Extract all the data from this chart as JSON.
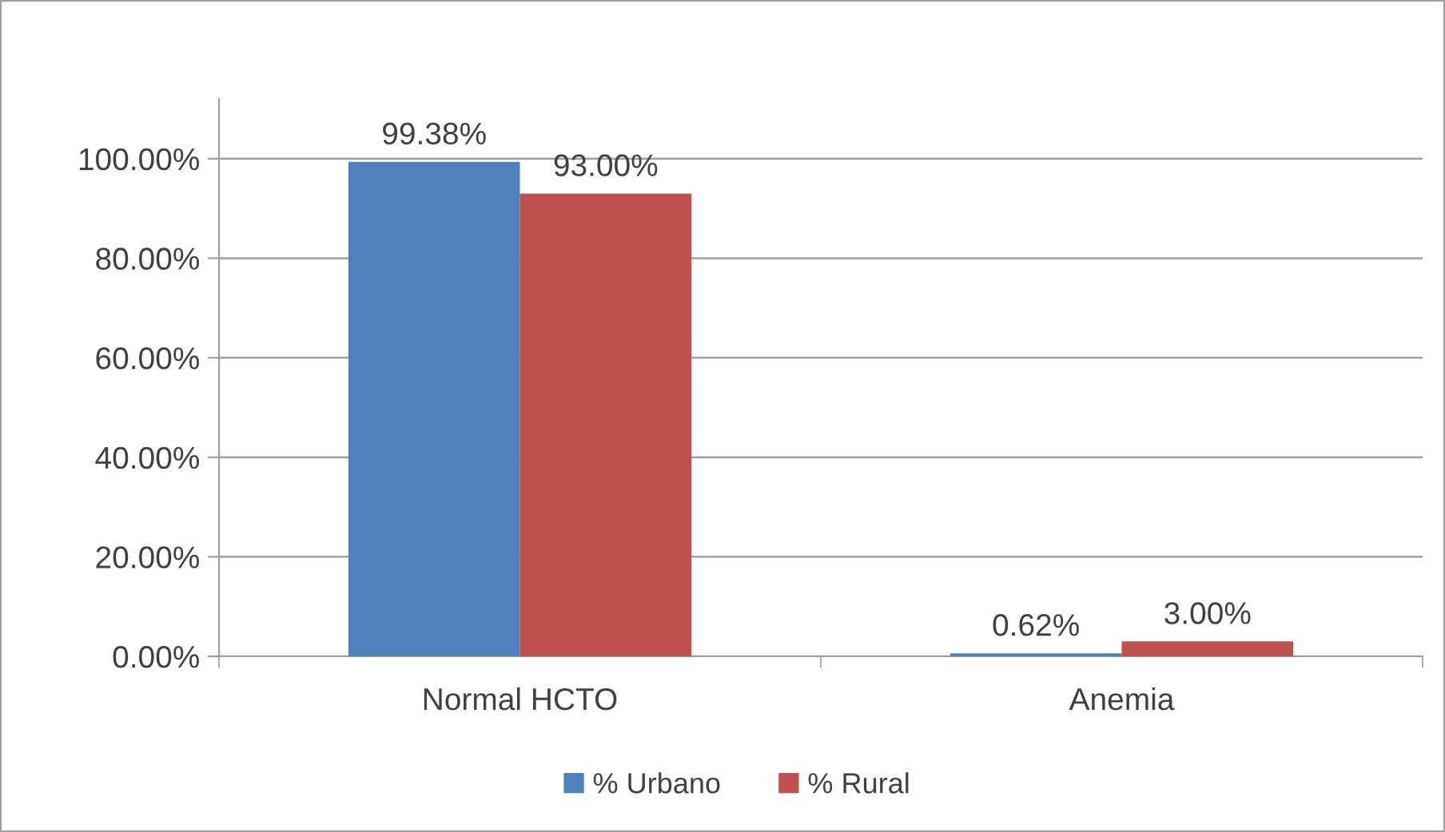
{
  "chart_data": {
    "type": "bar",
    "categories": [
      "Normal HCTO",
      "Anemia"
    ],
    "series": [
      {
        "name": "% Urbano",
        "color": "#4f81bd",
        "values": [
          99.38,
          0.62
        ],
        "value_labels": [
          "99.38%",
          "0.62%"
        ]
      },
      {
        "name": "% Rural",
        "color": "#c0504d",
        "values": [
          93.0,
          3.0
        ],
        "value_labels": [
          "93.00%",
          "3.00%"
        ]
      }
    ],
    "ylim": [
      0,
      112
    ],
    "yticks": [
      {
        "value": 0,
        "label": "0.00%"
      },
      {
        "value": 20,
        "label": "20.00%"
      },
      {
        "value": 40,
        "label": "40.00%"
      },
      {
        "value": 60,
        "label": "60.00%"
      },
      {
        "value": 80,
        "label": "80.00%"
      },
      {
        "value": 100,
        "label": "100.00%"
      }
    ],
    "grid": "y",
    "legend": "bottom"
  }
}
